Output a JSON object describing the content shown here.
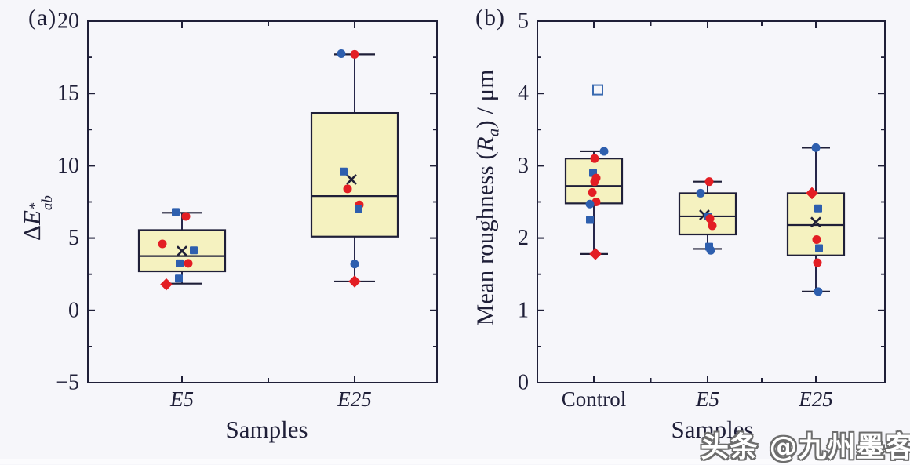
{
  "figure": {
    "background": "#f6f6fa",
    "watermark": "头条 @九州墨客"
  },
  "colors": {
    "line": "#1f1f38",
    "whisker": "#26264a",
    "box_fill": "#f5f2c0",
    "blue": "#2e5fae",
    "red": "#e31e24",
    "outlier_stroke": "#3a6ab0"
  },
  "chart_data": [
    {
      "type": "box",
      "panel_label": "(a)",
      "xlabel": "Samples",
      "ylabel": {
        "delta": "Δ",
        "letter": "E",
        "sup": "*",
        "sub": "ab"
      },
      "ylim": [
        -5,
        20
      ],
      "ytick_values": [
        20,
        15,
        10,
        5,
        0,
        -5
      ],
      "ytick_labels": [
        "20",
        "15",
        "10",
        "5",
        "0",
        "−5"
      ],
      "ytick_minor_step": 2.5,
      "grid": false,
      "categories": [
        {
          "label": "E5",
          "italic": true
        },
        {
          "label": "E25",
          "italic": true
        }
      ],
      "boxes": [
        {
          "category": "E5",
          "whisker_low": 1.85,
          "q1": 2.7,
          "median": 3.75,
          "q3": 5.55,
          "whisker_high": 6.75,
          "mean": 4.1,
          "mean_dx": 0,
          "mean_hidden": false
        },
        {
          "category": "E25",
          "whisker_low": 2.0,
          "q1": 5.1,
          "median": 7.9,
          "q3": 13.65,
          "whisker_high": 17.7,
          "mean": 9.05,
          "mean_dx": -4,
          "mean_hidden": false
        }
      ],
      "points": [
        {
          "category": "E5",
          "value": 6.8,
          "shape": "square",
          "color": "blue",
          "dx": -8
        },
        {
          "category": "E5",
          "value": 6.5,
          "shape": "circle",
          "color": "red",
          "dx": 5
        },
        {
          "category": "E5",
          "value": 4.6,
          "shape": "circle",
          "color": "red",
          "dx": -25
        },
        {
          "category": "E5",
          "value": 4.15,
          "shape": "square",
          "color": "blue",
          "dx": 15
        },
        {
          "category": "E5",
          "value": 3.25,
          "shape": "square",
          "color": "blue",
          "dx": -3
        },
        {
          "category": "E5",
          "value": 3.25,
          "shape": "circle",
          "color": "red",
          "dx": 8
        },
        {
          "category": "E5",
          "value": 2.2,
          "shape": "square",
          "color": "blue",
          "dx": -4
        },
        {
          "category": "E5",
          "value": 1.8,
          "shape": "diamond",
          "color": "red",
          "dx": -20
        },
        {
          "category": "E25",
          "value": 17.75,
          "shape": "circle",
          "color": "blue",
          "dx": -17
        },
        {
          "category": "E25",
          "value": 17.7,
          "shape": "circle",
          "color": "red",
          "dx": 0
        },
        {
          "category": "E25",
          "value": 9.6,
          "shape": "square",
          "color": "blue",
          "dx": -14
        },
        {
          "category": "E25",
          "value": 8.4,
          "shape": "circle",
          "color": "red",
          "dx": -9
        },
        {
          "category": "E25",
          "value": 7.3,
          "shape": "circle",
          "color": "red",
          "dx": 6
        },
        {
          "category": "E25",
          "value": 7.0,
          "shape": "square",
          "color": "blue",
          "dx": 5
        },
        {
          "category": "E25",
          "value": 3.2,
          "shape": "circle",
          "color": "blue",
          "dx": 0
        },
        {
          "category": "E25",
          "value": 2.0,
          "shape": "diamond",
          "color": "red",
          "dx": 0
        }
      ]
    },
    {
      "type": "box",
      "panel_label": "(b)",
      "xlabel": "Samples",
      "ylabel": {
        "pre": "Mean roughness (",
        "letter": "R",
        "lsub": "a",
        "post": ") / μm"
      },
      "ylim": [
        0,
        5
      ],
      "ytick_values": [
        5,
        4,
        3,
        2,
        1,
        0
      ],
      "ytick_labels": [
        "5",
        "4",
        "3",
        "2",
        "1",
        "0"
      ],
      "ytick_minor_step": 0.5,
      "grid": false,
      "categories": [
        {
          "label": "Control",
          "italic": false
        },
        {
          "label": "E5",
          "italic": true
        },
        {
          "label": "E25",
          "italic": true
        }
      ],
      "boxes": [
        {
          "category": "Control",
          "whisker_low": 1.78,
          "q1": 2.48,
          "median": 2.72,
          "q3": 3.1,
          "whisker_high": 3.2,
          "mean": 2.7,
          "mean_dx": 0,
          "mean_hidden": true
        },
        {
          "category": "E5",
          "whisker_low": 1.85,
          "q1": 2.05,
          "median": 2.3,
          "q3": 2.62,
          "whisker_high": 2.78,
          "mean": 2.32,
          "mean_dx": -4,
          "mean_hidden": false
        },
        {
          "category": "E25",
          "whisker_low": 1.26,
          "q1": 1.76,
          "median": 2.18,
          "q3": 2.62,
          "whisker_high": 3.25,
          "mean": 2.22,
          "mean_dx": 0,
          "mean_hidden": false
        }
      ],
      "points": [
        {
          "category": "Control",
          "value": 4.05,
          "shape": "open-square",
          "color": "outlier_stroke",
          "dx": 5
        },
        {
          "category": "Control",
          "value": 3.2,
          "shape": "circle",
          "color": "blue",
          "dx": 13
        },
        {
          "category": "Control",
          "value": 3.1,
          "shape": "circle",
          "color": "red",
          "dx": 1
        },
        {
          "category": "Control",
          "value": 2.9,
          "shape": "square",
          "color": "blue",
          "dx": -1
        },
        {
          "category": "Control",
          "value": 2.83,
          "shape": "circle",
          "color": "red",
          "dx": 3
        },
        {
          "category": "Control",
          "value": 2.78,
          "shape": "circle",
          "color": "red",
          "dx": 1
        },
        {
          "category": "Control",
          "value": 2.63,
          "shape": "circle",
          "color": "red",
          "dx": -2
        },
        {
          "category": "Control",
          "value": 2.5,
          "shape": "circle",
          "color": "red",
          "dx": 3
        },
        {
          "category": "Control",
          "value": 2.47,
          "shape": "circle",
          "color": "blue",
          "dx": -5
        },
        {
          "category": "Control",
          "value": 2.25,
          "shape": "square",
          "color": "blue",
          "dx": -5
        },
        {
          "category": "Control",
          "value": 1.78,
          "shape": "diamond",
          "color": "red",
          "dx": 2
        },
        {
          "category": "E5",
          "value": 2.78,
          "shape": "circle",
          "color": "red",
          "dx": 2
        },
        {
          "category": "E5",
          "value": 2.62,
          "shape": "circle",
          "color": "blue",
          "dx": -9
        },
        {
          "category": "E5",
          "value": 2.3,
          "shape": "square",
          "color": "blue",
          "dx": 0
        },
        {
          "category": "E5",
          "value": 2.27,
          "shape": "circle",
          "color": "red",
          "dx": 3
        },
        {
          "category": "E5",
          "value": 2.17,
          "shape": "circle",
          "color": "red",
          "dx": 6
        },
        {
          "category": "E5",
          "value": 1.88,
          "shape": "square",
          "color": "blue",
          "dx": 2
        },
        {
          "category": "E5",
          "value": 1.83,
          "shape": "circle",
          "color": "blue",
          "dx": 4
        },
        {
          "category": "E25",
          "value": 3.25,
          "shape": "circle",
          "color": "blue",
          "dx": 0
        },
        {
          "category": "E25",
          "value": 2.62,
          "shape": "diamond",
          "color": "red",
          "dx": -5
        },
        {
          "category": "E25",
          "value": 2.41,
          "shape": "square",
          "color": "blue",
          "dx": 3
        },
        {
          "category": "E25",
          "value": 1.98,
          "shape": "circle",
          "color": "red",
          "dx": 1
        },
        {
          "category": "E25",
          "value": 1.86,
          "shape": "square",
          "color": "blue",
          "dx": 4
        },
        {
          "category": "E25",
          "value": 1.66,
          "shape": "circle",
          "color": "red",
          "dx": 2
        },
        {
          "category": "E25",
          "value": 1.26,
          "shape": "circle",
          "color": "blue",
          "dx": 3
        }
      ]
    }
  ]
}
